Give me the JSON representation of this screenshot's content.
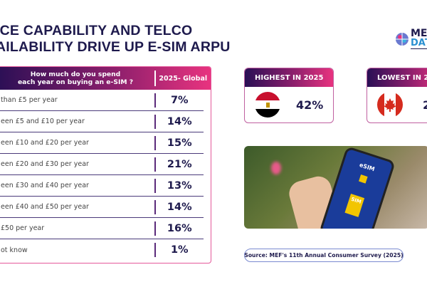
{
  "title": {
    "line1": "ICE CAPABILITY AND TELCO",
    "line2": "AILABILITY DRIVE UP E-SIM ARPU"
  },
  "table": {
    "question_line1": "How much do you spend",
    "question_line2": "each year on buying an e-SIM ?",
    "column": "2025- Global",
    "rows": [
      {
        "label": "than £5 per year",
        "value": "7%"
      },
      {
        "label": "een £5 and £10 per year",
        "value": "14%"
      },
      {
        "label": "een £10 and £20 per year",
        "value": "15%"
      },
      {
        "label": "een £20 and £30 per year",
        "value": "21%"
      },
      {
        "label": "een £30 and £40 per year",
        "value": "13%"
      },
      {
        "label": "een £40 and £50 per year",
        "value": "14%"
      },
      {
        "label": "£50 per year",
        "value": "16%"
      },
      {
        "label": "ot know",
        "value": "1%"
      }
    ]
  },
  "highest": {
    "label": "HIGHEST IN 2025",
    "value": "42%",
    "flag": "egypt-flag"
  },
  "lowest": {
    "label": "LOWEST IN 2",
    "value": "2",
    "flag": "canada-flag"
  },
  "photo": {
    "screen_title": "eSIM",
    "sim_label": "SIM"
  },
  "source": "Source: MEF's 11th Annual Consumer Survey (2025)",
  "logo": {
    "top": "ME",
    "bottom": "DAT"
  },
  "colors": {
    "navy": "#1e1a4d",
    "pink": "#e8337f",
    "purple": "#2a0f55"
  }
}
